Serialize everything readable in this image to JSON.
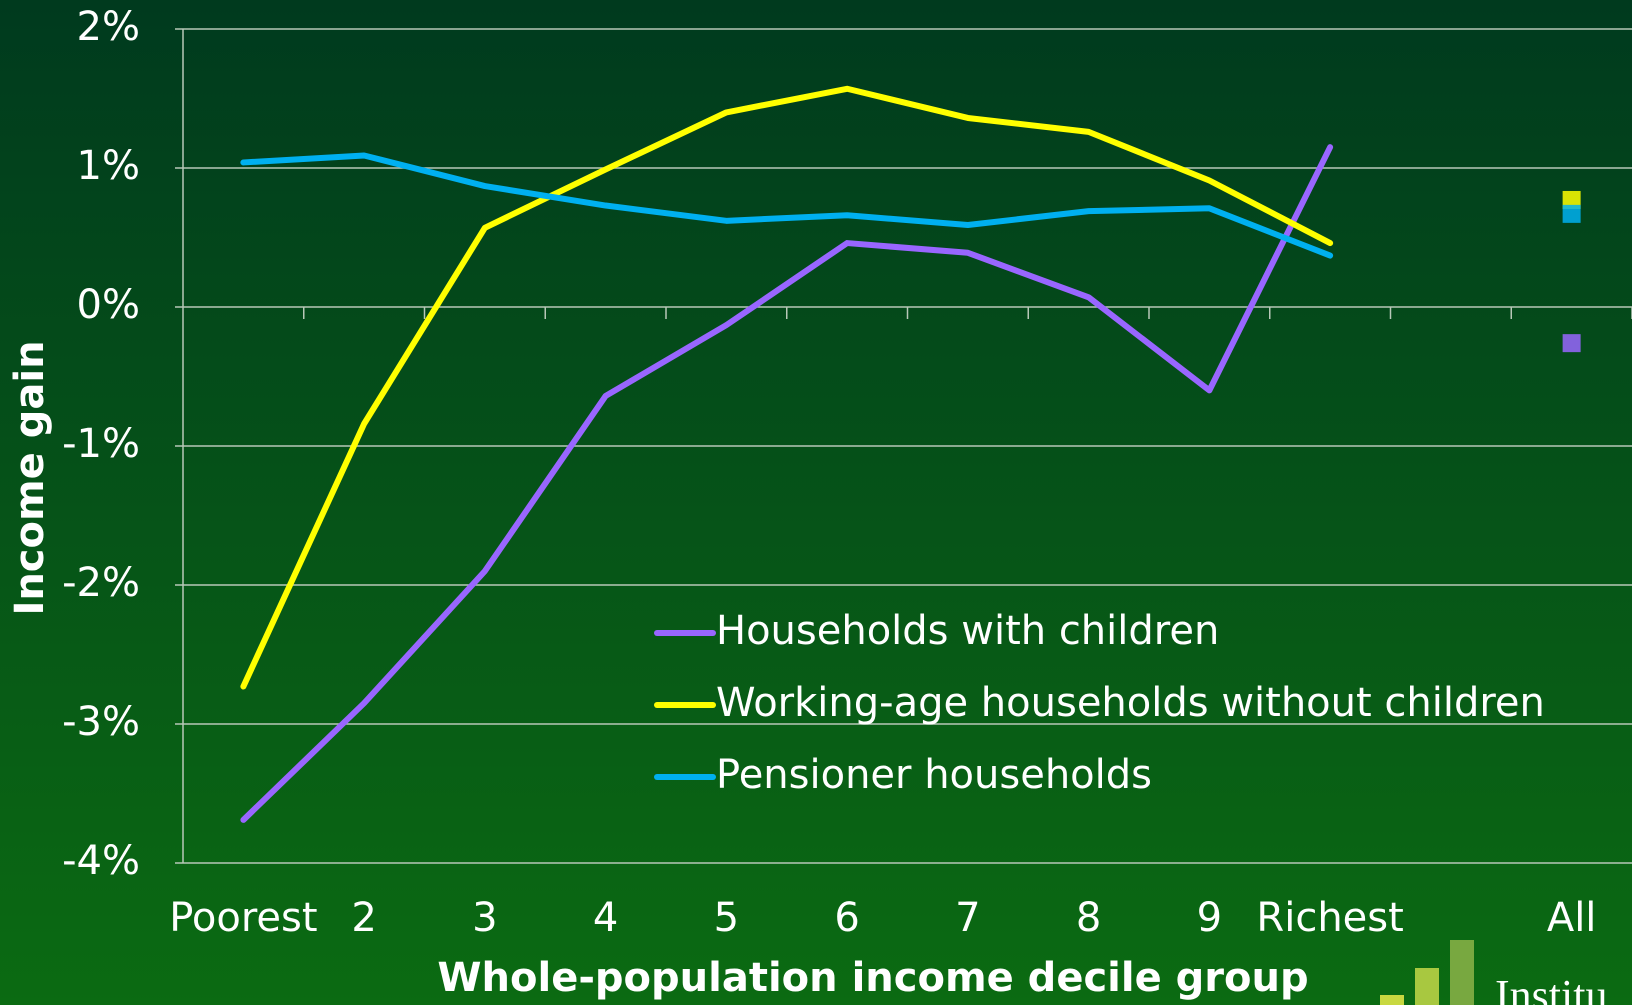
{
  "chart_data": {
    "type": "line",
    "y_label": "Income gain",
    "x_label": "Whole-population income decile group",
    "categories": [
      "Poorest",
      "2",
      "3",
      "4",
      "5",
      "6",
      "7",
      "8",
      "9",
      "Richest",
      null,
      "All"
    ],
    "series": [
      {
        "name": "Households with children",
        "color": "#9966ff",
        "values": [
          -3.69,
          -2.85,
          -1.9,
          -0.64,
          -0.13,
          0.46,
          0.39,
          0.07,
          -0.6,
          1.15,
          null,
          -0.26
        ]
      },
      {
        "name": "Working-age households without children",
        "color": "#ffff00",
        "values": [
          -2.73,
          -0.84,
          0.57,
          0.99,
          1.4,
          1.57,
          1.36,
          1.26,
          0.91,
          0.46,
          null,
          0.77
        ]
      },
      {
        "name": "Pensioner households",
        "color": "#00b0f0",
        "values": [
          1.04,
          1.09,
          0.87,
          0.73,
          0.62,
          0.66,
          0.59,
          0.69,
          0.71,
          0.37,
          null,
          0.67
        ]
      }
    ],
    "ylim": [
      -4,
      2
    ],
    "yticks": [
      {
        "value": -4,
        "label": "-4%"
      },
      {
        "value": -3,
        "label": "-3%"
      },
      {
        "value": -2,
        "label": "-2%"
      },
      {
        "value": -1,
        "label": "-1%"
      },
      {
        "value": 0,
        "label": "0%"
      },
      {
        "value": 1,
        "label": "1%"
      },
      {
        "value": 2,
        "label": "2%"
      }
    ],
    "grid": true,
    "logo_text": "Institu"
  }
}
